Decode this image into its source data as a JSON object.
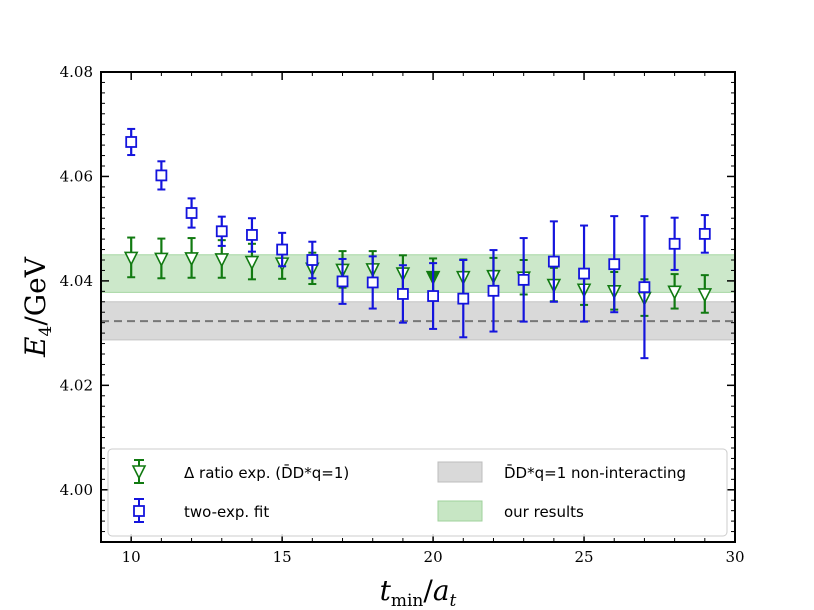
{
  "chart_data": {
    "type": "scatter",
    "xlabel": "t_min/a_t",
    "ylabel": "E_4/GeV",
    "xlim": [
      9,
      30
    ],
    "ylim": [
      3.99,
      4.08
    ],
    "x_ticks": [
      10,
      15,
      20,
      25,
      30
    ],
    "y_ticks": [
      4.0,
      4.02,
      4.04,
      4.06,
      4.08
    ],
    "x_tick_labels": [
      "10",
      "15",
      "20",
      "25",
      "30"
    ],
    "y_tick_labels": [
      "4.00",
      "4.02",
      "4.04",
      "4.06",
      "4.08"
    ],
    "legend_position": "lower-center",
    "bands": [
      {
        "name": "D̄D*_{q=1} non-interacting",
        "center": 4.0323,
        "low": 4.0287,
        "high": 4.036,
        "color": "#d9d9d9",
        "center_line": "dashed"
      },
      {
        "name": "our results",
        "low": 4.0378,
        "high": 4.045,
        "color": "#c7e6c4"
      }
    ],
    "series": [
      {
        "name": "Δ ratio exp. (D̄D*_{q=1})",
        "marker": "triangle-down",
        "color": "#117a11",
        "x": [
          10,
          11,
          12,
          13,
          14,
          15,
          16,
          17,
          18,
          19,
          20,
          21,
          22,
          23,
          24,
          25,
          26,
          27,
          28,
          29
        ],
        "y": [
          4.0445,
          4.0443,
          4.0444,
          4.0442,
          4.0437,
          4.0434,
          4.0424,
          4.0422,
          4.0423,
          4.0415,
          4.0408,
          4.0408,
          4.041,
          4.0407,
          4.0393,
          4.0384,
          4.0381,
          4.0368,
          4.038,
          4.0375
        ],
        "err": [
          0.0038,
          0.0038,
          0.0038,
          0.0036,
          0.0034,
          0.003,
          0.003,
          0.0035,
          0.0034,
          0.0034,
          0.0035,
          0.0033,
          0.0034,
          0.0033,
          0.0032,
          0.003,
          0.0036,
          0.0035,
          0.0033,
          0.0036
        ],
        "filled": [
          false,
          false,
          false,
          false,
          false,
          false,
          false,
          false,
          false,
          false,
          true,
          false,
          false,
          false,
          false,
          false,
          false,
          false,
          false,
          false
        ]
      },
      {
        "name": "two-exp. fit",
        "marker": "square",
        "color": "#1414dd",
        "x": [
          10,
          11,
          12,
          13,
          14,
          15,
          16,
          17,
          18,
          19,
          20,
          21,
          22,
          23,
          24,
          25,
          26,
          27,
          28,
          29
        ],
        "y": [
          4.0666,
          4.0602,
          4.053,
          4.0495,
          4.0488,
          4.046,
          4.044,
          4.0399,
          4.0397,
          4.0375,
          4.0371,
          4.0366,
          4.0381,
          4.0402,
          4.0437,
          4.0414,
          4.0432,
          4.0388,
          4.0471,
          4.049
        ],
        "err": [
          0.0025,
          0.0027,
          0.0028,
          0.0028,
          0.0032,
          0.0032,
          0.0035,
          0.0043,
          0.005,
          0.0055,
          0.0063,
          0.0074,
          0.0078,
          0.008,
          0.0077,
          0.0092,
          0.0092,
          0.0136,
          0.005,
          0.0036
        ]
      }
    ]
  },
  "legend": {
    "ratio_label": "Δ ratio exp. (D̄D*q=1)",
    "fit_label": "two-exp. fit",
    "nonint_label": "D̄D*q=1 non-interacting",
    "ours_label": "our results"
  },
  "colors": {
    "green": "#117a11",
    "blue": "#1414dd",
    "grey_band": "#d9d9d9",
    "green_band": "#c7e6c4",
    "dashed_line": "#777777"
  }
}
